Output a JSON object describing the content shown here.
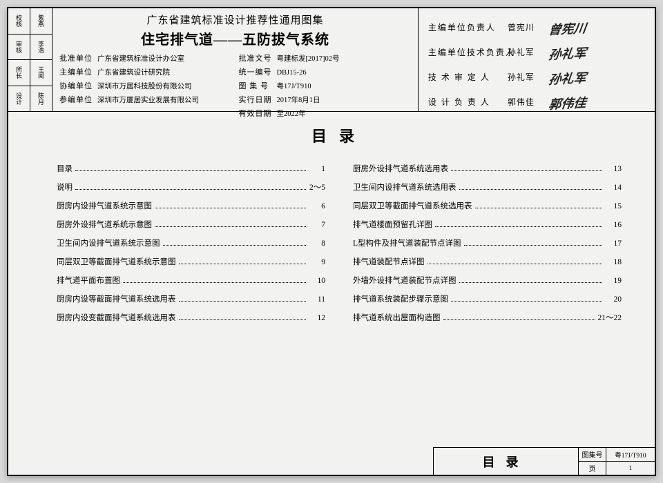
{
  "sidebar": {
    "cells": [
      [
        "校核",
        "紫燕"
      ],
      [
        "审核",
        "李浩"
      ],
      [
        "所长",
        "王闻"
      ],
      [
        "设计",
        "陈月"
      ]
    ]
  },
  "header": {
    "supertitle": "广东省建筑标准设计推荐性通用图集",
    "maintitle": "住宅排气道——五防拔气系统",
    "left": [
      {
        "label": "批准单位",
        "value": "广东省建筑标准设计办公室"
      },
      {
        "label": "主编单位",
        "value": "广东省建筑设计研究院"
      },
      {
        "label": "协编单位",
        "value": "深圳市万居科技股份有限公司"
      },
      {
        "label": "参编单位",
        "value": "深圳市万厦居实业发展有限公司"
      }
    ],
    "right": [
      {
        "label": "批准文号",
        "value": "粤建标发[2017]02号"
      },
      {
        "label": "统一编号",
        "value": "DBJ15-26"
      },
      {
        "label": "图 集 号",
        "value": "粤17J/T910"
      },
      {
        "label": "实行日期",
        "value": "2017年8月1日"
      },
      {
        "label": "有效日期",
        "value": "至2022年"
      }
    ]
  },
  "signatures": [
    {
      "role": "主编单位负责人",
      "name": "曾宪川",
      "sig": "曾宪川"
    },
    {
      "role": "主编单位技术负责人",
      "name": "孙礼军",
      "sig": "孙礼军"
    },
    {
      "role": "技 术 审 定 人",
      "name": "孙礼军",
      "sig": "孙礼军"
    },
    {
      "role": "设 计 负 责 人",
      "name": "郭伟佳",
      "sig": "郭伟佳"
    }
  ],
  "toc": {
    "title": "目录",
    "left": [
      {
        "label": "目录",
        "page": "1"
      },
      {
        "label": "说明",
        "page": "2～5"
      },
      {
        "label": "厨房内设排气道系统示意图",
        "page": "6"
      },
      {
        "label": "厨房外设排气道系统示意图",
        "page": "7"
      },
      {
        "label": "卫生间内设排气道系统示意图",
        "page": "8"
      },
      {
        "label": "同层双卫等截面排气道系统示意图",
        "page": "9"
      },
      {
        "label": "排气道平面布置图",
        "page": "10"
      },
      {
        "label": "厨房内设等截面排气道系统选用表",
        "page": "11"
      },
      {
        "label": "厨房内设变截面排气道系统选用表",
        "page": "12"
      }
    ],
    "right": [
      {
        "label": "厨房外设排气道系统选用表",
        "page": "13"
      },
      {
        "label": "卫生间内设排气道系统选用表",
        "page": "14"
      },
      {
        "label": "同层双卫等截面排气道系统选用表",
        "page": "15"
      },
      {
        "label": "排气道楼面预留孔详图",
        "page": "16"
      },
      {
        "label": "L型构件及排气道装配节点详图",
        "page": "17"
      },
      {
        "label": "排气道装配节点详图",
        "page": "18"
      },
      {
        "label": "外墙外设排气道装配节点详图",
        "page": "19"
      },
      {
        "label": "排气道系统装配步骤示意图",
        "page": "20"
      },
      {
        "label": "排气道系统出屋面构造图",
        "page": "21～22"
      }
    ]
  },
  "footer": {
    "title": "目录",
    "set_label": "图集号",
    "set_value": "粤17J/T910",
    "page_label": "页",
    "page_value": "1"
  }
}
